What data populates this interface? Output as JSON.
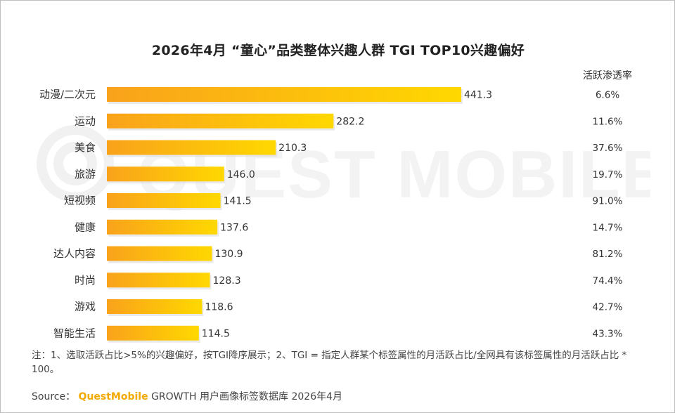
{
  "chart_data": {
    "type": "bar",
    "orientation": "horizontal",
    "title": "2026年4月 “童心”品类整体兴趣人群 TGI TOP10兴趣偏好",
    "categories": [
      "动漫/二次元",
      "运动",
      "美食",
      "旅游",
      "短视频",
      "健康",
      "达人内容",
      "时尚",
      "游戏",
      "智能生活"
    ],
    "values": [
      441.3,
      282.2,
      210.3,
      146.0,
      141.5,
      137.6,
      130.9,
      128.3,
      118.6,
      114.5
    ],
    "value_labels": [
      "441.3",
      "282.2",
      "210.3",
      "146.0",
      "141.5",
      "137.6",
      "130.9",
      "128.3",
      "118.6",
      "114.5"
    ],
    "extra_column": {
      "header": "活跃渗透率",
      "values": [
        "6.6%",
        "11.6%",
        "37.6%",
        "19.7%",
        "91.0%",
        "14.7%",
        "81.2%",
        "74.4%",
        "42.7%",
        "43.3%"
      ]
    },
    "xlim": [
      0,
      441.3
    ],
    "grid": false,
    "legend": "none",
    "bar_color_start": "#f9a21b",
    "bar_color_end": "#ffd800"
  },
  "watermark": "QUEST MOBILE",
  "note": "注：1、选取活跃占比>5%的兴趣偏好，按TGI降序展示；2、TGI = 指定人群某个标签属性的月活跃占比/全网具有该标签属性的月活跃占比 * 100。",
  "source": {
    "prefix": "Source：",
    "brand": "QuestMobile",
    "text": "GROWTH 用户画像标签数据库 2026年4月"
  }
}
